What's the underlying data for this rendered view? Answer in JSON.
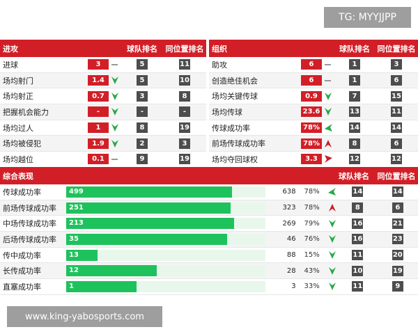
{
  "badges": {
    "tg": "TG: MYYJJPP",
    "site": "www.king-yabosports.com"
  },
  "attack": {
    "title": "进攻",
    "team_rank_label": "球队排名",
    "position_rank_label": "同位置排名",
    "rows": [
      {
        "label": "进球",
        "value": "3",
        "trend": "neutral",
        "team_rank": "5",
        "pos_rank": "11"
      },
      {
        "label": "场均射门",
        "value": "1.4",
        "trend": "down",
        "team_rank": "5",
        "pos_rank": "10"
      },
      {
        "label": "场均射正",
        "value": "0.7",
        "trend": "down",
        "team_rank": "3",
        "pos_rank": "8"
      },
      {
        "label": "把握机会能力",
        "value": "-",
        "trend": "down",
        "team_rank": "-",
        "pos_rank": "-"
      },
      {
        "label": "场均过人",
        "value": "1",
        "trend": "down",
        "team_rank": "8",
        "pos_rank": "19"
      },
      {
        "label": "场均被侵犯",
        "value": "1.9",
        "trend": "down",
        "team_rank": "2",
        "pos_rank": "3"
      },
      {
        "label": "场均越位",
        "value": "0.1",
        "trend": "neutral",
        "team_rank": "9",
        "pos_rank": "19"
      }
    ]
  },
  "organize": {
    "title": "组织",
    "team_rank_label": "球队排名",
    "position_rank_label": "同位置排名",
    "rows": [
      {
        "label": "助攻",
        "value": "6",
        "trend": "neutral",
        "team_rank": "1",
        "pos_rank": "3"
      },
      {
        "label": "创造绝佳机会",
        "value": "6",
        "trend": "neutral",
        "team_rank": "1",
        "pos_rank": "6"
      },
      {
        "label": "场均关键传球",
        "value": "0.9",
        "trend": "down",
        "team_rank": "7",
        "pos_rank": "15"
      },
      {
        "label": "场均传球",
        "value": "23.6",
        "trend": "down",
        "team_rank": "13",
        "pos_rank": "11"
      },
      {
        "label": "传球成功率",
        "value": "78%",
        "trend": "down-left",
        "team_rank": "14",
        "pos_rank": "14"
      },
      {
        "label": "前场传球成功率",
        "value": "78%",
        "trend": "up",
        "team_rank": "8",
        "pos_rank": "6"
      },
      {
        "label": "场均夺回球权",
        "value": "3.3",
        "trend": "up-right",
        "team_rank": "12",
        "pos_rank": "12"
      }
    ]
  },
  "overall": {
    "title": "综合表现",
    "team_rank_label": "球队排名",
    "position_rank_label": "同位置排名",
    "rows": [
      {
        "label": "传球成功率",
        "success": "499",
        "total": "638",
        "pct": "78%",
        "ratio": 0.782,
        "trend": "down-left",
        "team_rank": "14",
        "pos_rank": "14"
      },
      {
        "label": "前场传球成功率",
        "success": "251",
        "total": "323",
        "pct": "78%",
        "ratio": 0.777,
        "trend": "up",
        "team_rank": "8",
        "pos_rank": "6"
      },
      {
        "label": "中场传球成功率",
        "success": "213",
        "total": "269",
        "pct": "79%",
        "ratio": 0.792,
        "trend": "down",
        "team_rank": "16",
        "pos_rank": "21"
      },
      {
        "label": "后场传球成功率",
        "success": "35",
        "total": "46",
        "pct": "76%",
        "ratio": 0.761,
        "trend": "down",
        "team_rank": "16",
        "pos_rank": "23"
      },
      {
        "label": "传中成功率",
        "success": "13",
        "total": "88",
        "pct": "15%",
        "ratio": 0.148,
        "trend": "down",
        "team_rank": "11",
        "pos_rank": "20"
      },
      {
        "label": "长传成功率",
        "success": "12",
        "total": "28",
        "pct": "43%",
        "ratio": 0.429,
        "trend": "down",
        "team_rank": "10",
        "pos_rank": "19"
      },
      {
        "label": "直塞成功率",
        "success": "1",
        "total": "3",
        "pct": "33%",
        "ratio": 0.333,
        "trend": "down",
        "team_rank": "11",
        "pos_rank": "9"
      }
    ]
  },
  "colors": {
    "header": "#d21f27",
    "value_box": "#d21f27",
    "rank_box": "#4d4d4d",
    "trend_green": "#2aa84a",
    "trend_red": "#c81e2a",
    "bar": "#1ec25c"
  }
}
